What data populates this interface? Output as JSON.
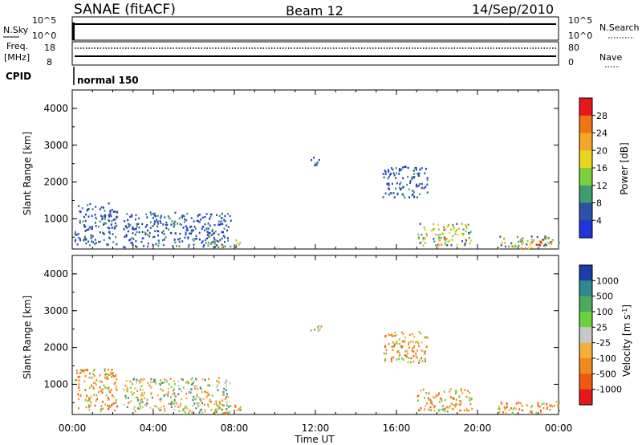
{
  "header": {
    "station": "SANAE (fitACF)",
    "beam": "Beam 12",
    "date": "14/Sep/2010"
  },
  "strips": {
    "nsky_label": "N.Sky",
    "nsearch_label": "N.Search",
    "log_top": "10^5",
    "log_bottom": "10^0",
    "freq_label": "Freq.",
    "freq_unit": "[MHz]",
    "freq_ticks": [
      "18",
      "8"
    ],
    "nave_label": "Nave",
    "nave_ticks": [
      "80",
      "0"
    ],
    "cpid_label": "CPID",
    "cpid_value": "normal 150"
  },
  "time_axis": {
    "label": "Time UT",
    "ticks": [
      "00:00",
      "04:00",
      "08:00",
      "12:00",
      "16:00",
      "20:00",
      "00:00"
    ]
  },
  "chart_data": [
    {
      "type": "heatmap",
      "name": "power",
      "xlabel": "Time UT",
      "ylabel": "Slant Range [km]",
      "ylim": [
        180,
        4500
      ],
      "yticks": [
        "4000",
        "3000",
        "2000",
        "1000"
      ],
      "colorbar": {
        "label": "Power [dB]",
        "ticks": [
          "28",
          "24",
          "20",
          "16",
          "12",
          "8",
          "4"
        ],
        "colors": [
          "#e8171c",
          "#f07414",
          "#f5a623",
          "#e8d51e",
          "#7ccf3c",
          "#3f9c6c",
          "#2b52a6",
          "#1f34d9"
        ]
      },
      "scatter_regions": [
        {
          "t": [
            0.1,
            2.2
          ],
          "r": [
            300,
            1450
          ],
          "pal": "low"
        },
        {
          "t": [
            2.5,
            7.8
          ],
          "r": [
            250,
            1200
          ],
          "pal": "low"
        },
        {
          "t": [
            6.8,
            8.3
          ],
          "r": [
            180,
            450
          ],
          "pal": "mid"
        },
        {
          "t": [
            11.7,
            12.3
          ],
          "r": [
            2450,
            2700
          ],
          "pal": "low"
        },
        {
          "t": [
            15.3,
            17.5
          ],
          "r": [
            1600,
            2450
          ],
          "pal": "low"
        },
        {
          "t": [
            17.0,
            19.7
          ],
          "r": [
            300,
            900
          ],
          "pal": "mid"
        },
        {
          "t": [
            18.0,
            18.7
          ],
          "r": [
            280,
            500
          ],
          "pal": "high"
        },
        {
          "t": [
            21.0,
            24.0
          ],
          "r": [
            180,
            550
          ],
          "pal": "mid"
        },
        {
          "t": [
            22.0,
            23.5
          ],
          "r": [
            180,
            400
          ],
          "pal": "high"
        }
      ]
    },
    {
      "type": "heatmap",
      "name": "velocity",
      "xlabel": "Time UT",
      "ylabel": "Slant Range [km]",
      "ylim": [
        180,
        4500
      ],
      "yticks": [
        "4000",
        "3000",
        "2000",
        "1000"
      ],
      "colorbar": {
        "label": "Velocity [m s^-1]",
        "ticks": [
          "1000",
          "500",
          "100",
          "25",
          "-25",
          "-100",
          "-500",
          "-1000"
        ],
        "colors": [
          "#1a3ea8",
          "#2e8a8e",
          "#4daa5c",
          "#6ccf3c",
          "#c8c8c8",
          "#f6b03a",
          "#f08a1e",
          "#ee5a12",
          "#e6171c"
        ]
      },
      "scatter_regions": [
        {
          "t": [
            0.1,
            2.2
          ],
          "r": [
            300,
            1450
          ],
          "pal": "orange"
        },
        {
          "t": [
            2.5,
            7.8
          ],
          "r": [
            250,
            1200
          ],
          "pal": "mixed"
        },
        {
          "t": [
            6.8,
            8.3
          ],
          "r": [
            180,
            450
          ],
          "pal": "orange"
        },
        {
          "t": [
            11.7,
            12.3
          ],
          "r": [
            2450,
            2700
          ],
          "pal": "green"
        },
        {
          "t": [
            15.3,
            17.5
          ],
          "r": [
            1600,
            2450
          ],
          "pal": "orange"
        },
        {
          "t": [
            17.0,
            19.7
          ],
          "r": [
            300,
            900
          ],
          "pal": "orange"
        },
        {
          "t": [
            18.0,
            18.7
          ],
          "r": [
            280,
            500
          ],
          "pal": "green"
        },
        {
          "t": [
            21.0,
            24.0
          ],
          "r": [
            180,
            550
          ],
          "pal": "orange"
        }
      ]
    }
  ]
}
